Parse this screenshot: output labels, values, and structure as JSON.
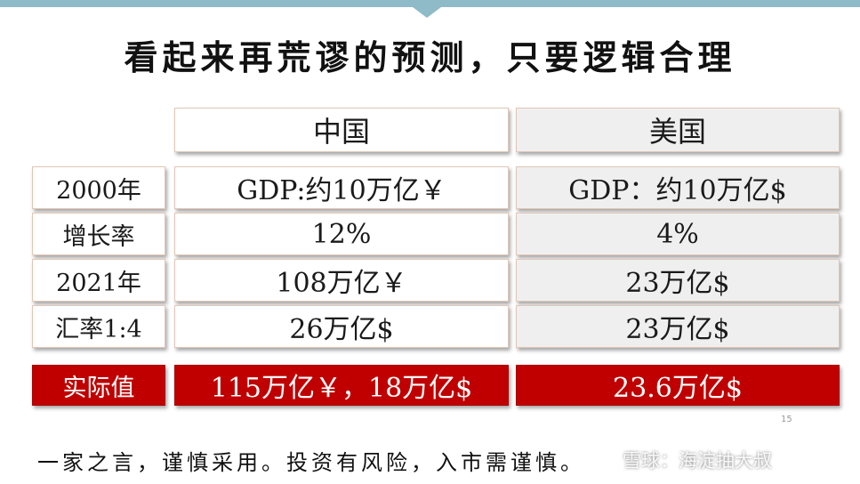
{
  "slide": {
    "title": "看起来再荒谬的预测，只要逻辑合理",
    "footer": "一家之言，谨慎采用。投资有风险，入市需谨慎。",
    "watermark": "雪球：海淀抽大叔",
    "page_number": "15"
  },
  "table": {
    "columns": [
      "中国",
      "美国"
    ],
    "rows": [
      {
        "label": "2000年",
        "china": "GDP:约10万亿￥",
        "usa": "GDP：约10万亿$"
      },
      {
        "label": "增长率",
        "china": "12%",
        "usa": "4%"
      },
      {
        "label": "2021年",
        "china": "108万亿￥",
        "usa": "23万亿$"
      },
      {
        "label": "汇率1:4",
        "china": "26万亿$",
        "usa": "23万亿$"
      }
    ],
    "actual": {
      "label": "实际值",
      "china": "115万亿￥，18万亿$",
      "usa": "23.6万亿$"
    }
  },
  "colors": {
    "accent_bar": "#8fbac8",
    "highlight_red": "#c00000",
    "us_cell_bg": "#efefef"
  }
}
